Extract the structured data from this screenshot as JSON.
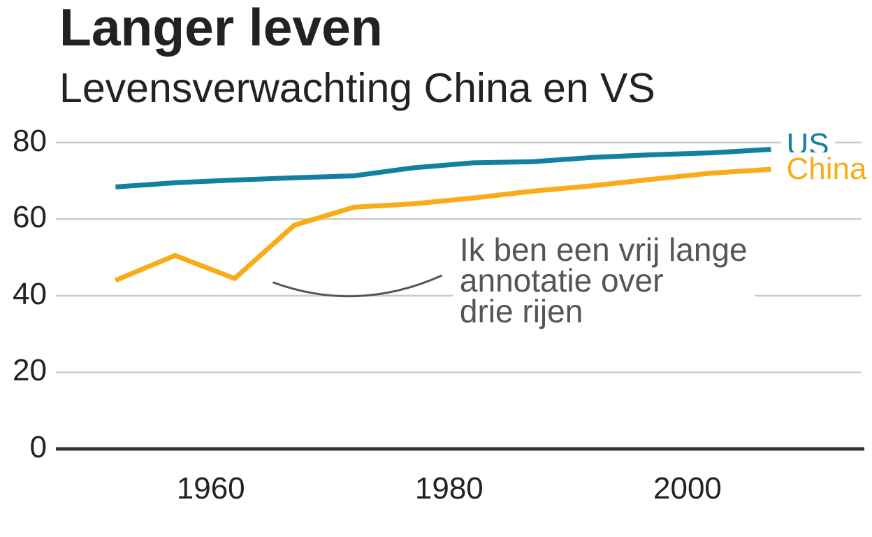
{
  "chart_data": {
    "type": "line",
    "title": "Langer leven",
    "subtitle": "Levensverwachting China en VS",
    "xlabel": "",
    "ylabel": "",
    "x": [
      1952,
      1957,
      1962,
      1967,
      1972,
      1977,
      1982,
      1987,
      1992,
      1997,
      2002,
      2007
    ],
    "series": [
      {
        "name": "US",
        "color": "#1380A1",
        "values": [
          68.4,
          69.5,
          70.2,
          70.8,
          71.3,
          73.4,
          74.7,
          75.0,
          76.1,
          76.8,
          77.3,
          78.2
        ],
        "label": {
          "text": "US",
          "x": 2008.3,
          "y": 79
        }
      },
      {
        "name": "China",
        "color": "#FAAB18",
        "values": [
          44.0,
          50.5,
          44.5,
          58.4,
          63.1,
          64.0,
          65.5,
          67.3,
          68.7,
          70.4,
          72.0,
          73.0
        ],
        "label": {
          "text": "China",
          "x": 2008.3,
          "y": 72.6
        }
      }
    ],
    "xlim": [
      1947.0,
      2014.6
    ],
    "ylim": [
      0,
      88
    ],
    "xticks": [
      1960,
      1980,
      2000
    ],
    "yticks": [
      0,
      20,
      40,
      60,
      80
    ],
    "grid": "horizontal-only",
    "legend": "none (direct labels on lines, white background)",
    "baseline_y": 0,
    "annotation": {
      "text": "Ik ben een vrij lange\nannotatie over\ndrie rijen",
      "color": "#555555",
      "x": 1981,
      "y": 44,
      "curve": {
        "x": 1979.4,
        "y": 45.3,
        "ctrl_x": 1972.3,
        "ctrl_y": 35.4,
        "xend": 1965.2,
        "yend": 43.5
      }
    },
    "colors": {
      "grid": "#CBCBCB",
      "axis_line": "#333333",
      "text": "#222222"
    }
  }
}
